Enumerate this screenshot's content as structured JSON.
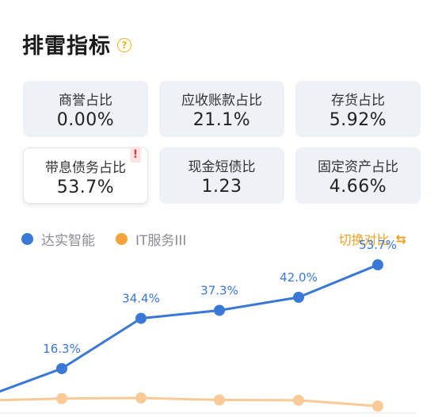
{
  "header": {
    "title": "排雷指标",
    "help_icon": "?"
  },
  "metrics": [
    {
      "label": "商誉占比",
      "value": "0.00%"
    },
    {
      "label": "应收账款占比",
      "value": "21.1%"
    },
    {
      "label": "存货占比",
      "value": "5.92%"
    },
    {
      "label": "带息债务占比",
      "value": "53.7%",
      "alert": "!"
    },
    {
      "label": "现金短债比",
      "value": "1.23"
    },
    {
      "label": "固定资产占比",
      "value": "4.66%"
    }
  ],
  "legend": {
    "company": "达实智能",
    "industry": "IT服务III"
  },
  "switch": {
    "label": "切换对比",
    "icon": "switch-icon"
  },
  "colors": {
    "company": "#3a78d8",
    "industry": "#f9c996",
    "switch": "#f0a020"
  },
  "chart_data": {
    "type": "line",
    "series": [
      {
        "name": "达实智能",
        "values": [
          null,
          16.3,
          34.4,
          37.3,
          42.0,
          53.7
        ],
        "labels": [
          "",
          "16.3%",
          "34.4%",
          "37.3%",
          "42.0%",
          "53.7%"
        ]
      },
      {
        "name": "IT服务III",
        "values": [
          null,
          5.5,
          5.7,
          5.0,
          4.9,
          2.8
        ]
      }
    ]
  }
}
